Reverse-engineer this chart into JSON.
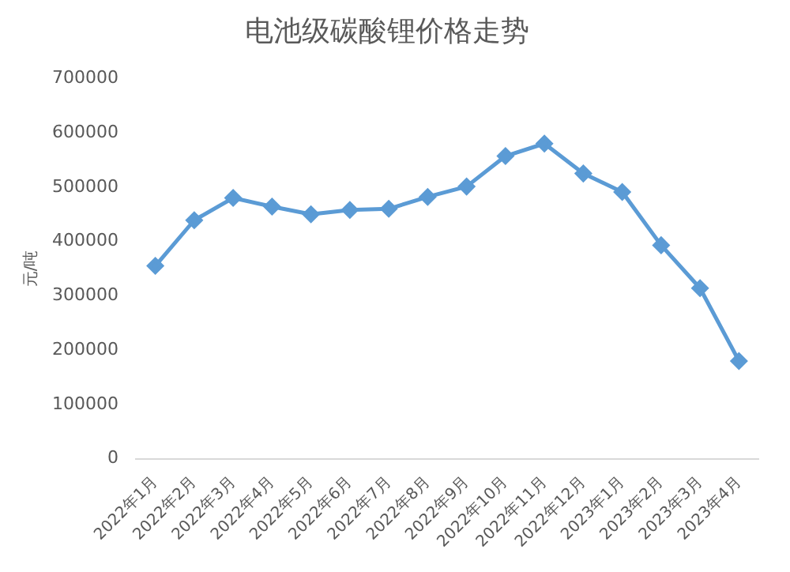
{
  "chart_data": {
    "type": "line",
    "title": "电池级碳酸锂价格走势",
    "ylabel": "元/吨",
    "categories": [
      "2022年1月",
      "2022年2月",
      "2022年3月",
      "2022年4月",
      "2022年5月",
      "2022年6月",
      "2022年7月",
      "2022年8月",
      "2022年9月",
      "2022年10月",
      "2022年11月",
      "2022年12月",
      "2023年1月",
      "2023年2月",
      "2023年3月",
      "2023年4月"
    ],
    "series": [
      {
        "color": "#5b9bd5",
        "values": [
          355000,
          439000,
          480000,
          464000,
          450000,
          458000,
          460000,
          482000,
          501000,
          557000,
          580000,
          525000,
          491000,
          393000,
          314000,
          180000
        ]
      }
    ],
    "ylim": [
      0,
      700000
    ],
    "yticks": [
      0,
      100000,
      200000,
      300000,
      400000,
      500000,
      600000,
      700000
    ],
    "grid": false,
    "legend": false,
    "marker": "diamond",
    "line_style": "solid"
  }
}
